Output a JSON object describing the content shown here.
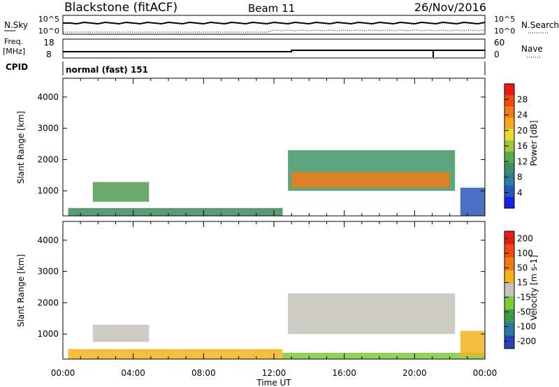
{
  "header": {
    "station": "Blackstone (fitACF)",
    "beam": "Beam 11",
    "date": "26/Nov/2016"
  },
  "top_panels": {
    "nsky_label": "N.Sky",
    "nsky_ticks": [
      "10^5",
      "10^0"
    ],
    "nsearch_label": "N.Search",
    "nsearch_ticks": [
      "10^5",
      "10^0"
    ],
    "freq_label_line1": "Freq.",
    "freq_label_line2": "[MHz]",
    "freq_ticks": [
      "18",
      "8"
    ],
    "nave_label": "Nave",
    "nave_ticks": [
      "60",
      "0"
    ],
    "cpid_label": "CPID",
    "cpid_text": "normal (fast) 151"
  },
  "chart_data": [
    {
      "type": "heatmap",
      "name": "power",
      "ylabel": "Slant Range [km]",
      "ylim": [
        200,
        4600
      ],
      "yticks": [
        1000,
        2000,
        3000,
        4000
      ],
      "xlim": [
        0,
        24
      ],
      "colorbar": {
        "label": "Power [dB]",
        "ticks": [
          "4",
          "8",
          "12",
          "16",
          "20",
          "24",
          "28"
        ],
        "colors": [
          "#1a22e8",
          "#2b57b8",
          "#2d7fa0",
          "#3a8d6a",
          "#5ba84a",
          "#9cc640",
          "#e8dc2a",
          "#f5a81e",
          "#f27a15",
          "#ef4812",
          "#e81c10"
        ]
      },
      "regions": [
        {
          "hours": [
            0.3,
            12.5
          ],
          "range_km": [
            200,
            450
          ],
          "color": "#3c8a5a"
        },
        {
          "hours": [
            1.7,
            4.9
          ],
          "range_km": [
            650,
            1280
          ],
          "color": "#4f9a55"
        },
        {
          "hours": [
            12.8,
            22.3
          ],
          "range_km": [
            1000,
            2300
          ],
          "color": "#3f9566"
        },
        {
          "hours": [
            13.0,
            22.0
          ],
          "range_km": [
            1100,
            1600
          ],
          "color": "#f07a18"
        },
        {
          "hours": [
            22.6,
            24.0
          ],
          "range_km": [
            200,
            1100
          ],
          "color": "#2b57b8"
        }
      ]
    },
    {
      "type": "heatmap",
      "name": "velocity",
      "ylabel": "Slant Range [km]",
      "ylim": [
        200,
        4600
      ],
      "yticks": [
        1000,
        2000,
        3000,
        4000
      ],
      "xlim": [
        0,
        24
      ],
      "xticks": [
        "00:00",
        "04:00",
        "08:00",
        "12:00",
        "16:00",
        "20:00",
        "00:00"
      ],
      "xlabel": "Time UT",
      "colorbar": {
        "label": "Velocity [m s-1]",
        "ticks": [
          "200",
          "100",
          "50",
          "15",
          "-15",
          "-50",
          "-100",
          "-200"
        ],
        "colors": [
          "#2a3fb8",
          "#2e78a8",
          "#3b9a48",
          "#7ecb3a",
          "#c4c4bc",
          "#f2b31e",
          "#f27a15",
          "#ef4a12",
          "#e81c10"
        ]
      },
      "regions": [
        {
          "hours": [
            0.3,
            12.5
          ],
          "range_km": [
            200,
            520
          ],
          "color": "#f2b31e"
        },
        {
          "hours": [
            1.7,
            4.9
          ],
          "range_km": [
            750,
            1300
          ],
          "color": "#c4c4bc"
        },
        {
          "hours": [
            12.8,
            22.3
          ],
          "range_km": [
            1000,
            2300
          ],
          "color": "#c4c4bc"
        },
        {
          "hours": [
            12.5,
            24.0
          ],
          "range_km": [
            200,
            400
          ],
          "color": "#7ecb3a"
        },
        {
          "hours": [
            22.6,
            24.0
          ],
          "range_km": [
            300,
            1100
          ],
          "color": "#f2b31e"
        }
      ]
    }
  ]
}
